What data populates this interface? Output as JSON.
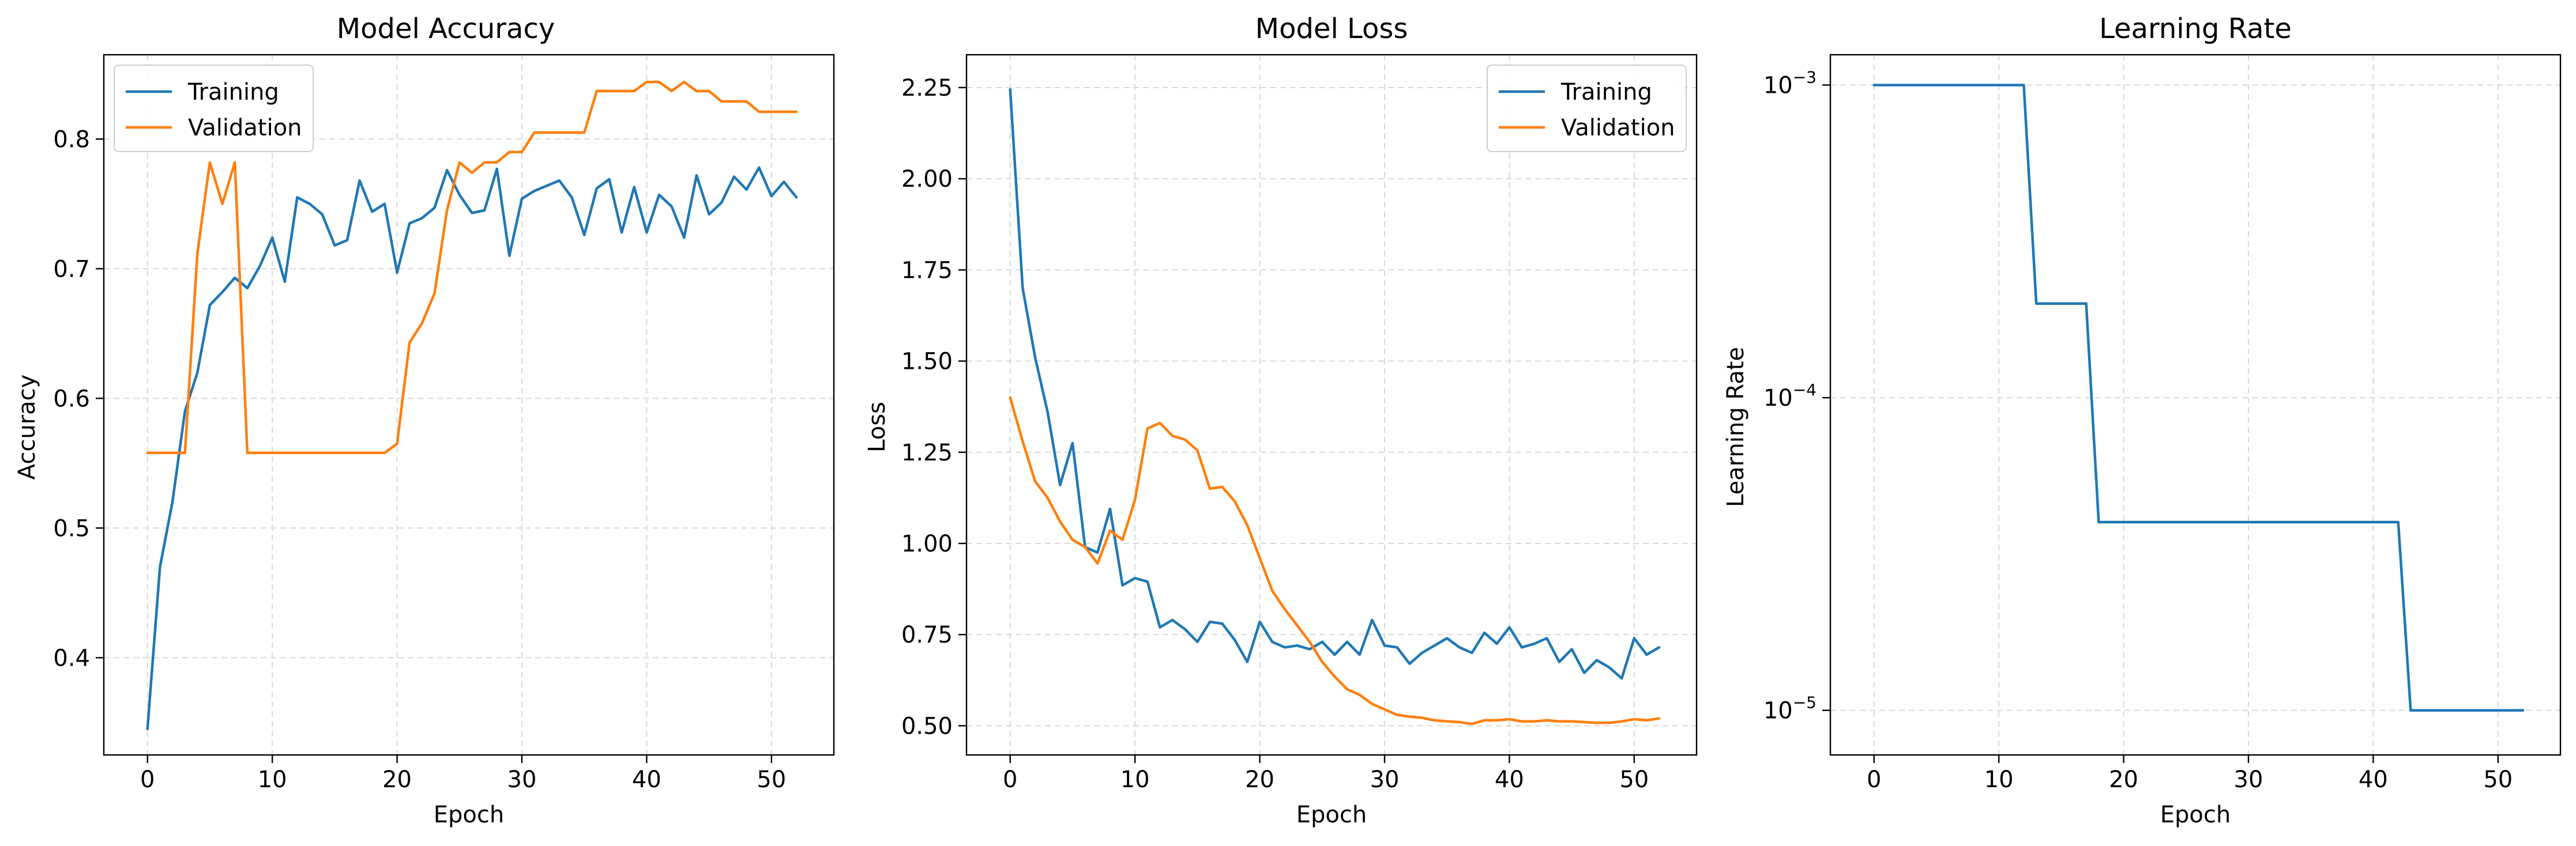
{
  "chart_data": [
    {
      "type": "line",
      "title": "Model Accuracy",
      "xlabel": "Epoch",
      "ylabel": "Accuracy",
      "xlim": [
        -3.5,
        55
      ],
      "ylim": [
        0.325,
        0.865
      ],
      "xticks": [
        0,
        10,
        20,
        30,
        40,
        50
      ],
      "xtick_labels": [
        "0",
        "10",
        "20",
        "30",
        "40",
        "50"
      ],
      "yticks": [
        0.4,
        0.5,
        0.6,
        0.7,
        0.8
      ],
      "ytick_labels": [
        "0.4",
        "0.5",
        "0.6",
        "0.7",
        "0.8"
      ],
      "grid": true,
      "legend": "top-left",
      "x": [
        0,
        1,
        2,
        3,
        4,
        5,
        6,
        7,
        8,
        9,
        10,
        11,
        12,
        13,
        14,
        15,
        16,
        17,
        18,
        19,
        20,
        21,
        22,
        23,
        24,
        25,
        26,
        27,
        28,
        29,
        30,
        31,
        32,
        33,
        34,
        35,
        36,
        37,
        38,
        39,
        40,
        41,
        42,
        43,
        44,
        45,
        46,
        47,
        48,
        49,
        50,
        51,
        52
      ],
      "series": [
        {
          "name": "Training",
          "color": "#1f77b4",
          "values": [
            0.345,
            0.47,
            0.52,
            0.59,
            0.62,
            0.672,
            0.682,
            0.693,
            0.685,
            0.702,
            0.724,
            0.69,
            0.755,
            0.75,
            0.742,
            0.718,
            0.722,
            0.768,
            0.744,
            0.75,
            0.697,
            0.735,
            0.739,
            0.747,
            0.776,
            0.757,
            0.743,
            0.745,
            0.777,
            0.71,
            0.754,
            0.76,
            0.764,
            0.768,
            0.755,
            0.726,
            0.762,
            0.769,
            0.728,
            0.763,
            0.728,
            0.757,
            0.748,
            0.724,
            0.772,
            0.742,
            0.751,
            0.771,
            0.761,
            0.778,
            0.756,
            0.767,
            0.755
          ]
        },
        {
          "name": "Validation",
          "color": "#ff7f0e",
          "values": [
            0.558,
            0.558,
            0.558,
            0.558,
            0.712,
            0.782,
            0.75,
            0.782,
            0.558,
            0.558,
            0.558,
            0.558,
            0.558,
            0.558,
            0.558,
            0.558,
            0.558,
            0.558,
            0.558,
            0.558,
            0.565,
            0.643,
            0.658,
            0.681,
            0.745,
            0.782,
            0.774,
            0.782,
            0.782,
            0.79,
            0.79,
            0.805,
            0.805,
            0.805,
            0.805,
            0.805,
            0.837,
            0.837,
            0.837,
            0.837,
            0.844,
            0.844,
            0.837,
            0.844,
            0.837,
            0.837,
            0.829,
            0.829,
            0.829,
            0.821,
            0.821,
            0.821,
            0.821
          ]
        }
      ]
    },
    {
      "type": "line",
      "title": "Model Loss",
      "xlabel": "Epoch",
      "ylabel": "Loss",
      "xlim": [
        -3.5,
        55
      ],
      "ylim": [
        0.42,
        2.34
      ],
      "xticks": [
        0,
        10,
        20,
        30,
        40,
        50
      ],
      "xtick_labels": [
        "0",
        "10",
        "20",
        "30",
        "40",
        "50"
      ],
      "yticks": [
        0.5,
        0.75,
        1.0,
        1.25,
        1.5,
        1.75,
        2.0,
        2.25
      ],
      "ytick_labels": [
        "0.50",
        "0.75",
        "1.00",
        "1.25",
        "1.50",
        "1.75",
        "2.00",
        "2.25"
      ],
      "grid": true,
      "legend": "top-right",
      "x": [
        0,
        1,
        2,
        3,
        4,
        5,
        6,
        7,
        8,
        9,
        10,
        11,
        12,
        13,
        14,
        15,
        16,
        17,
        18,
        19,
        20,
        21,
        22,
        23,
        24,
        25,
        26,
        27,
        28,
        29,
        30,
        31,
        32,
        33,
        34,
        35,
        36,
        37,
        38,
        39,
        40,
        41,
        42,
        43,
        44,
        45,
        46,
        47,
        48,
        49,
        50,
        51,
        52
      ],
      "series": [
        {
          "name": "Training",
          "color": "#1f77b4",
          "values": [
            2.245,
            1.7,
            1.51,
            1.36,
            1.16,
            1.275,
            0.99,
            0.975,
            1.095,
            0.885,
            0.905,
            0.895,
            0.77,
            0.79,
            0.765,
            0.73,
            0.785,
            0.78,
            0.735,
            0.675,
            0.785,
            0.73,
            0.715,
            0.72,
            0.71,
            0.73,
            0.695,
            0.73,
            0.695,
            0.79,
            0.72,
            0.715,
            0.67,
            0.7,
            0.72,
            0.74,
            0.715,
            0.7,
            0.755,
            0.725,
            0.77,
            0.715,
            0.725,
            0.74,
            0.675,
            0.71,
            0.645,
            0.68,
            0.66,
            0.63,
            0.74,
            0.695,
            0.715
          ]
        },
        {
          "name": "Validation",
          "color": "#ff7f0e",
          "values": [
            1.4,
            1.28,
            1.17,
            1.125,
            1.06,
            1.01,
            0.99,
            0.945,
            1.035,
            1.01,
            1.12,
            1.315,
            1.33,
            1.295,
            1.285,
            1.255,
            1.15,
            1.155,
            1.115,
            1.05,
            0.96,
            0.87,
            0.82,
            0.775,
            0.73,
            0.675,
            0.635,
            0.6,
            0.585,
            0.56,
            0.545,
            0.53,
            0.525,
            0.522,
            0.515,
            0.512,
            0.51,
            0.505,
            0.515,
            0.515,
            0.518,
            0.512,
            0.512,
            0.515,
            0.512,
            0.512,
            0.51,
            0.508,
            0.508,
            0.512,
            0.518,
            0.515,
            0.52
          ]
        }
      ]
    },
    {
      "type": "line",
      "title": "Learning Rate",
      "xlabel": "Epoch",
      "ylabel": "Learning Rate",
      "yscale": "log",
      "xlim": [
        -3.5,
        55
      ],
      "ylim": [
        7.2e-06,
        0.00125
      ],
      "xticks": [
        0,
        10,
        20,
        30,
        40,
        50
      ],
      "xtick_labels": [
        "0",
        "10",
        "20",
        "30",
        "40",
        "50"
      ],
      "yticks": [
        1e-05,
        0.0001,
        0.001
      ],
      "ytick_labels": [
        [
          "10",
          "−5"
        ],
        [
          "10",
          "−4"
        ],
        [
          "10",
          "−3"
        ]
      ],
      "grid": true,
      "x": [
        0,
        1,
        2,
        3,
        4,
        5,
        6,
        7,
        8,
        9,
        10,
        11,
        12,
        13,
        14,
        15,
        16,
        17,
        18,
        19,
        20,
        21,
        22,
        23,
        24,
        25,
        26,
        27,
        28,
        29,
        30,
        31,
        32,
        33,
        34,
        35,
        36,
        37,
        38,
        39,
        40,
        41,
        42,
        43,
        44,
        45,
        46,
        47,
        48,
        49,
        50,
        51,
        52
      ],
      "series": [
        {
          "name": "",
          "color": "#1f77b4",
          "values": [
            0.001,
            0.001,
            0.001,
            0.001,
            0.001,
            0.001,
            0.001,
            0.001,
            0.001,
            0.001,
            0.001,
            0.001,
            0.001,
            0.0002,
            0.0002,
            0.0002,
            0.0002,
            0.0002,
            4e-05,
            4e-05,
            4e-05,
            4e-05,
            4e-05,
            4e-05,
            4e-05,
            4e-05,
            4e-05,
            4e-05,
            4e-05,
            4e-05,
            4e-05,
            4e-05,
            4e-05,
            4e-05,
            4e-05,
            4e-05,
            4e-05,
            4e-05,
            4e-05,
            4e-05,
            4e-05,
            4e-05,
            4e-05,
            1e-05,
            1e-05,
            1e-05,
            1e-05,
            1e-05,
            1e-05,
            1e-05,
            1e-05,
            1e-05,
            1e-05
          ]
        }
      ]
    }
  ]
}
